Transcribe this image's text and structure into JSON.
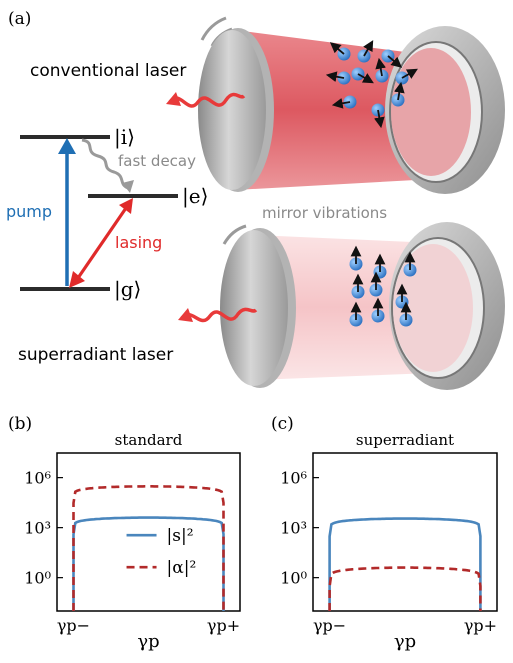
{
  "panel_a": {
    "tag": "(a)",
    "conventional_label": "conventional laser",
    "superradiant_label": "superradiant laser",
    "levels": {
      "i": "|i⟩",
      "e": "|e⟩",
      "g": "|g⟩"
    },
    "pump_label": "pump",
    "fast_decay_label": "fast decay",
    "lasing_label": "lasing",
    "mirror_vibrations_label": "mirror vibrations",
    "colors": {
      "pump": "#1f6fb4",
      "lasing": "#e02a2a",
      "decay": "#9a9a9a",
      "photon": "#e83a3a",
      "atom": "#3a86d8",
      "cavity_dense": "#e0565e",
      "cavity_light": "#f7d1d3"
    }
  },
  "panel_b": {
    "tag": "(b)"
  },
  "panel_c": {
    "tag": "(c)"
  },
  "chart_data": [
    {
      "type": "line",
      "title": "standard",
      "xlabel": "γp",
      "xticks": [
        "γp−",
        "γp+"
      ],
      "ytick_labels": [
        "10⁰",
        "10³",
        "10⁶"
      ],
      "yscale": "log",
      "ylim": [
        0.01,
        30000000
      ],
      "series": [
        {
          "name": "|s|²",
          "style": "solid",
          "color": "#4a86bd",
          "peak": 4000,
          "edge": 400
        },
        {
          "name": "|α|²",
          "style": "dashed",
          "color": "#b22a2a",
          "peak": 300000,
          "edge": 30000
        }
      ],
      "legend": "center-right"
    },
    {
      "type": "line",
      "title": "superradiant",
      "xlabel": "γp",
      "xticks": [
        "γp−",
        "γp+"
      ],
      "ytick_labels": [
        "10⁰",
        "10³",
        "10⁶"
      ],
      "yscale": "log",
      "ylim": [
        0.01,
        30000000
      ],
      "series": [
        {
          "name": "|s|²",
          "style": "solid",
          "color": "#4a86bd",
          "peak": 3500,
          "edge": 300
        },
        {
          "name": "|α|²",
          "style": "dashed",
          "color": "#b22a2a",
          "peak": 4,
          "edge": 0.3
        }
      ]
    }
  ]
}
